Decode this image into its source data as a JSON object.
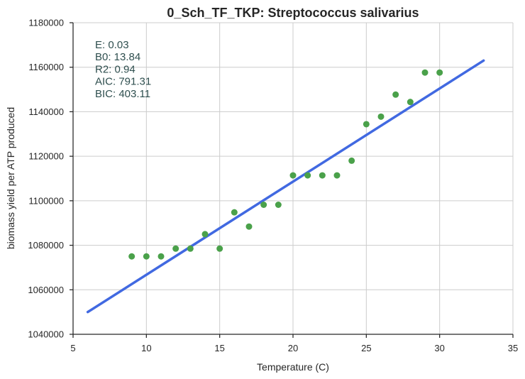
{
  "chart_data": {
    "type": "scatter",
    "title": "0_Sch_TF_TKP: Streptococcus salivarius",
    "xlabel": "Temperature (C)",
    "ylabel": "biomass yield per ATP produced",
    "xlim": [
      5,
      35
    ],
    "ylim": [
      1040000,
      1180000
    ],
    "x_ticks": [
      5,
      10,
      15,
      20,
      25,
      30,
      35
    ],
    "y_ticks": [
      1040000,
      1060000,
      1080000,
      1100000,
      1120000,
      1140000,
      1160000,
      1180000
    ],
    "grid": true,
    "points": {
      "color": "#4aa14a",
      "x": [
        9,
        10,
        11,
        12,
        13,
        14,
        15,
        16,
        17,
        18,
        19,
        20,
        21,
        22,
        23,
        24,
        25,
        26,
        27,
        28,
        29,
        30
      ],
      "y": [
        1075000,
        1075000,
        1075000,
        1078500,
        1078500,
        1085000,
        1078500,
        1094800,
        1088400,
        1098200,
        1098200,
        1111400,
        1111400,
        1111400,
        1111400,
        1118000,
        1134400,
        1137800,
        1147700,
        1144400,
        1157600,
        1157600
      ]
    },
    "fit_line": {
      "color": "#4169e1",
      "x": [
        6,
        33
      ],
      "y": [
        1050000,
        1163000
      ]
    },
    "annotations": {
      "color": "#2f4f4f",
      "lines": [
        "E:  0.03",
        "B0:  13.84",
        "R2:  0.94",
        "AIC: 791.31",
        "BIC: 403.11"
      ]
    }
  }
}
